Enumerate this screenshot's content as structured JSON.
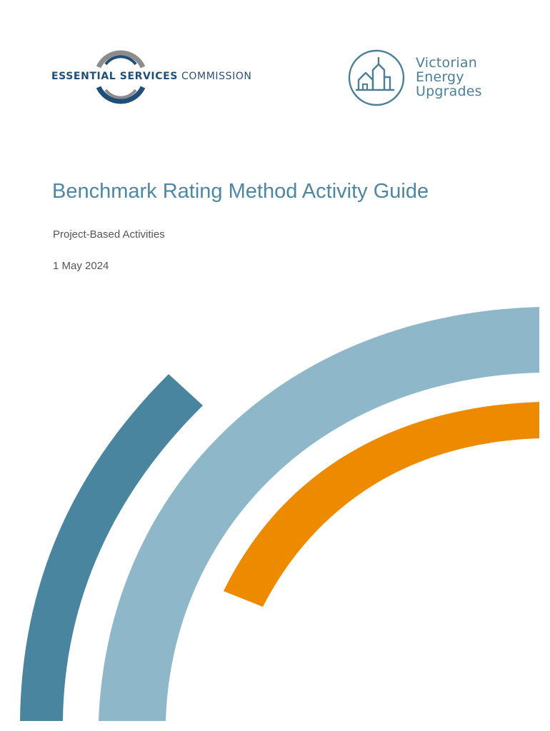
{
  "header": {
    "esc_logo": {
      "word_bold": "ESSENTIAL SERVICES",
      "word_light": "COMMISSION"
    },
    "veu_logo": {
      "line1": "Victorian",
      "line2": "Energy",
      "line3": "Upgrades"
    }
  },
  "cover": {
    "title": "Benchmark Rating Method Activity Guide",
    "subtitle": "Project-Based Activities",
    "date": "1 May 2024"
  },
  "colors": {
    "title": "#4d87a3",
    "dark_teal_arc": "#4a859f",
    "light_blue_arc": "#8fb7ca",
    "orange_arc": "#ee8a00",
    "esc_navy": "#1f4e79",
    "esc_grey": "#8c8c8c"
  }
}
